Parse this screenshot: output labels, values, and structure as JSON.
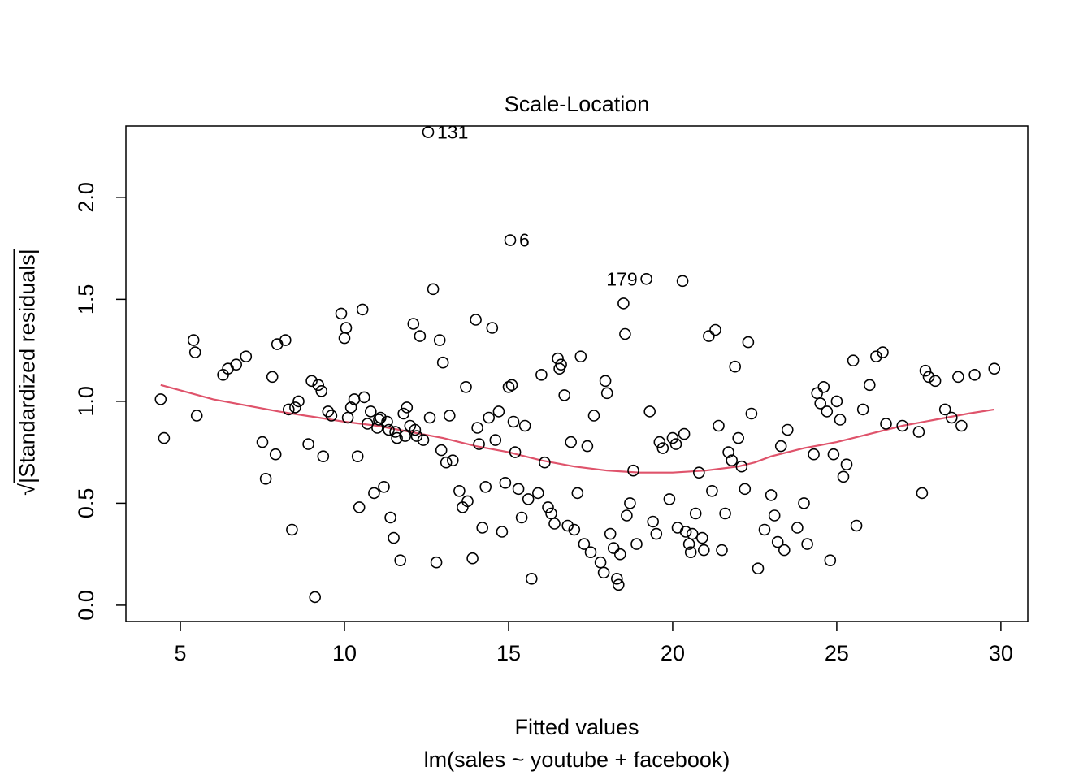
{
  "title": "Scale-Location",
  "xlabel": "Fitted values",
  "x_sublabel": "lm(sales ~ youtube + facebook)",
  "ylabel_sqrt": "√",
  "ylabel_rest": "|Standardized residuals|",
  "chart_data": {
    "type": "scatter",
    "title": "Scale-Location",
    "xlabel": "Fitted values",
    "model_label": "lm(sales ~ youtube + facebook)",
    "ylabel": "sqrt(|Standardized residuals|)",
    "x_ticks": [
      5,
      10,
      15,
      20,
      25,
      30
    ],
    "y_ticks": [
      "0.0",
      "0.5",
      "1.0",
      "1.5",
      "2.0"
    ],
    "xlim": [
      3.34,
      30.82
    ],
    "ylim": [
      -0.08,
      2.35
    ],
    "grid": false,
    "point_color": "#000000",
    "smooth_color": "#DF536B",
    "labeled_points": [
      {
        "label": "131",
        "x": 12.55,
        "y": 2.32,
        "side": "right"
      },
      {
        "label": "6",
        "x": 15.05,
        "y": 1.79,
        "side": "right"
      },
      {
        "label": "179",
        "x": 19.2,
        "y": 1.6,
        "side": "left"
      }
    ],
    "smooth": [
      [
        4.4,
        1.08
      ],
      [
        6,
        1.01
      ],
      [
        8,
        0.95
      ],
      [
        10,
        0.9
      ],
      [
        11,
        0.88
      ],
      [
        12,
        0.85
      ],
      [
        13,
        0.82
      ],
      [
        14,
        0.78
      ],
      [
        15,
        0.75
      ],
      [
        16,
        0.71
      ],
      [
        17,
        0.68
      ],
      [
        18,
        0.66
      ],
      [
        19,
        0.65
      ],
      [
        20,
        0.65
      ],
      [
        21,
        0.66
      ],
      [
        22,
        0.68
      ],
      [
        22.5,
        0.7
      ],
      [
        23,
        0.73
      ],
      [
        24,
        0.77
      ],
      [
        25,
        0.8
      ],
      [
        26,
        0.84
      ],
      [
        27,
        0.88
      ],
      [
        28,
        0.91
      ],
      [
        29,
        0.94
      ],
      [
        29.8,
        0.96
      ]
    ],
    "points": [
      [
        4.4,
        1.01
      ],
      [
        4.5,
        0.82
      ],
      [
        5.4,
        1.3
      ],
      [
        5.45,
        1.24
      ],
      [
        5.5,
        0.93
      ],
      [
        6.3,
        1.13
      ],
      [
        6.45,
        1.16
      ],
      [
        6.7,
        1.18
      ],
      [
        7.0,
        1.22
      ],
      [
        7.5,
        0.8
      ],
      [
        7.6,
        0.62
      ],
      [
        7.8,
        1.12
      ],
      [
        7.9,
        0.74
      ],
      [
        7.95,
        1.28
      ],
      [
        8.2,
        1.3
      ],
      [
        8.3,
        0.96
      ],
      [
        8.4,
        0.37
      ],
      [
        8.5,
        0.97
      ],
      [
        8.6,
        1.0
      ],
      [
        8.9,
        0.79
      ],
      [
        9.0,
        1.1
      ],
      [
        9.1,
        0.04
      ],
      [
        9.2,
        1.08
      ],
      [
        9.3,
        1.05
      ],
      [
        9.35,
        0.73
      ],
      [
        9.5,
        0.95
      ],
      [
        9.6,
        0.93
      ],
      [
        9.9,
        1.43
      ],
      [
        10.0,
        1.31
      ],
      [
        10.05,
        1.36
      ],
      [
        10.1,
        0.92
      ],
      [
        10.2,
        0.97
      ],
      [
        10.3,
        1.01
      ],
      [
        10.4,
        0.73
      ],
      [
        10.45,
        0.48
      ],
      [
        10.55,
        1.45
      ],
      [
        10.6,
        1.02
      ],
      [
        10.7,
        0.89
      ],
      [
        10.8,
        0.95
      ],
      [
        10.9,
        0.55
      ],
      [
        11.0,
        0.87
      ],
      [
        11.05,
        0.91
      ],
      [
        11.1,
        0.92
      ],
      [
        11.2,
        0.58
      ],
      [
        11.3,
        0.9
      ],
      [
        11.35,
        0.86
      ],
      [
        11.4,
        0.43
      ],
      [
        11.5,
        0.33
      ],
      [
        11.55,
        0.85
      ],
      [
        11.6,
        0.82
      ],
      [
        11.7,
        0.22
      ],
      [
        11.8,
        0.94
      ],
      [
        11.85,
        0.83
      ],
      [
        11.9,
        0.97
      ],
      [
        12.0,
        0.88
      ],
      [
        12.1,
        1.38
      ],
      [
        12.15,
        0.86
      ],
      [
        12.2,
        0.83
      ],
      [
        12.3,
        1.32
      ],
      [
        12.4,
        0.81
      ],
      [
        12.6,
        0.92
      ],
      [
        12.7,
        1.55
      ],
      [
        12.8,
        0.21
      ],
      [
        12.9,
        1.3
      ],
      [
        12.95,
        0.76
      ],
      [
        13.0,
        1.19
      ],
      [
        13.1,
        0.7
      ],
      [
        13.2,
        0.93
      ],
      [
        13.3,
        0.71
      ],
      [
        13.5,
        0.56
      ],
      [
        13.6,
        0.48
      ],
      [
        13.7,
        1.07
      ],
      [
        13.75,
        0.51
      ],
      [
        13.9,
        0.23
      ],
      [
        14.0,
        1.4
      ],
      [
        14.05,
        0.87
      ],
      [
        14.1,
        0.79
      ],
      [
        14.2,
        0.38
      ],
      [
        14.3,
        0.58
      ],
      [
        14.4,
        0.92
      ],
      [
        14.5,
        1.36
      ],
      [
        14.6,
        0.81
      ],
      [
        14.7,
        0.95
      ],
      [
        14.8,
        0.36
      ],
      [
        14.9,
        0.6
      ],
      [
        15.0,
        1.07
      ],
      [
        15.1,
        1.08
      ],
      [
        15.15,
        0.9
      ],
      [
        15.2,
        0.75
      ],
      [
        15.3,
        0.57
      ],
      [
        15.4,
        0.43
      ],
      [
        15.5,
        0.88
      ],
      [
        15.6,
        0.52
      ],
      [
        15.7,
        0.13
      ],
      [
        15.9,
        0.55
      ],
      [
        16.0,
        1.13
      ],
      [
        16.1,
        0.7
      ],
      [
        16.2,
        0.48
      ],
      [
        16.3,
        0.45
      ],
      [
        16.4,
        0.4
      ],
      [
        16.5,
        1.21
      ],
      [
        16.55,
        1.16
      ],
      [
        16.6,
        1.18
      ],
      [
        16.7,
        1.03
      ],
      [
        16.8,
        0.39
      ],
      [
        16.9,
        0.8
      ],
      [
        17.0,
        0.37
      ],
      [
        17.1,
        0.55
      ],
      [
        17.2,
        1.22
      ],
      [
        17.3,
        0.3
      ],
      [
        17.4,
        0.78
      ],
      [
        17.5,
        0.26
      ],
      [
        17.6,
        0.93
      ],
      [
        17.8,
        0.21
      ],
      [
        17.9,
        0.16
      ],
      [
        17.95,
        1.1
      ],
      [
        18.0,
        1.04
      ],
      [
        18.1,
        0.35
      ],
      [
        18.2,
        0.28
      ],
      [
        18.3,
        0.13
      ],
      [
        18.35,
        0.1
      ],
      [
        18.4,
        0.25
      ],
      [
        18.5,
        1.48
      ],
      [
        18.55,
        1.33
      ],
      [
        18.6,
        0.44
      ],
      [
        18.7,
        0.5
      ],
      [
        18.8,
        0.66
      ],
      [
        18.9,
        0.3
      ],
      [
        19.3,
        0.95
      ],
      [
        19.4,
        0.41
      ],
      [
        19.5,
        0.35
      ],
      [
        19.6,
        0.8
      ],
      [
        19.7,
        0.77
      ],
      [
        19.9,
        0.52
      ],
      [
        20.0,
        0.82
      ],
      [
        20.1,
        0.79
      ],
      [
        20.15,
        0.38
      ],
      [
        20.3,
        1.59
      ],
      [
        20.35,
        0.84
      ],
      [
        20.4,
        0.36
      ],
      [
        20.5,
        0.3
      ],
      [
        20.55,
        0.26
      ],
      [
        20.6,
        0.35
      ],
      [
        20.7,
        0.45
      ],
      [
        20.8,
        0.65
      ],
      [
        20.9,
        0.33
      ],
      [
        20.95,
        0.27
      ],
      [
        21.1,
        1.32
      ],
      [
        21.2,
        0.56
      ],
      [
        21.3,
        1.35
      ],
      [
        21.4,
        0.88
      ],
      [
        21.5,
        0.27
      ],
      [
        21.6,
        0.45
      ],
      [
        21.7,
        0.75
      ],
      [
        21.8,
        0.71
      ],
      [
        21.9,
        1.17
      ],
      [
        22.0,
        0.82
      ],
      [
        22.1,
        0.68
      ],
      [
        22.2,
        0.57
      ],
      [
        22.3,
        1.29
      ],
      [
        22.4,
        0.94
      ],
      [
        22.6,
        0.18
      ],
      [
        22.8,
        0.37
      ],
      [
        23.0,
        0.54
      ],
      [
        23.1,
        0.44
      ],
      [
        23.2,
        0.31
      ],
      [
        23.3,
        0.78
      ],
      [
        23.4,
        0.27
      ],
      [
        23.5,
        0.86
      ],
      [
        23.8,
        0.38
      ],
      [
        24.0,
        0.5
      ],
      [
        24.1,
        0.3
      ],
      [
        24.3,
        0.74
      ],
      [
        24.4,
        1.04
      ],
      [
        24.5,
        0.99
      ],
      [
        24.6,
        1.07
      ],
      [
        24.7,
        0.95
      ],
      [
        24.8,
        0.22
      ],
      [
        24.9,
        0.74
      ],
      [
        25.0,
        1.0
      ],
      [
        25.1,
        0.91
      ],
      [
        25.2,
        0.63
      ],
      [
        25.3,
        0.69
      ],
      [
        25.5,
        1.2
      ],
      [
        25.6,
        0.39
      ],
      [
        25.8,
        0.96
      ],
      [
        26.0,
        1.08
      ],
      [
        26.2,
        1.22
      ],
      [
        26.4,
        1.24
      ],
      [
        26.5,
        0.89
      ],
      [
        27.0,
        0.88
      ],
      [
        27.5,
        0.85
      ],
      [
        27.6,
        0.55
      ],
      [
        27.7,
        1.15
      ],
      [
        27.8,
        1.12
      ],
      [
        28.0,
        1.1
      ],
      [
        28.3,
        0.96
      ],
      [
        28.5,
        0.92
      ],
      [
        28.7,
        1.12
      ],
      [
        28.8,
        0.88
      ],
      [
        29.2,
        1.13
      ],
      [
        29.8,
        1.16
      ]
    ]
  }
}
